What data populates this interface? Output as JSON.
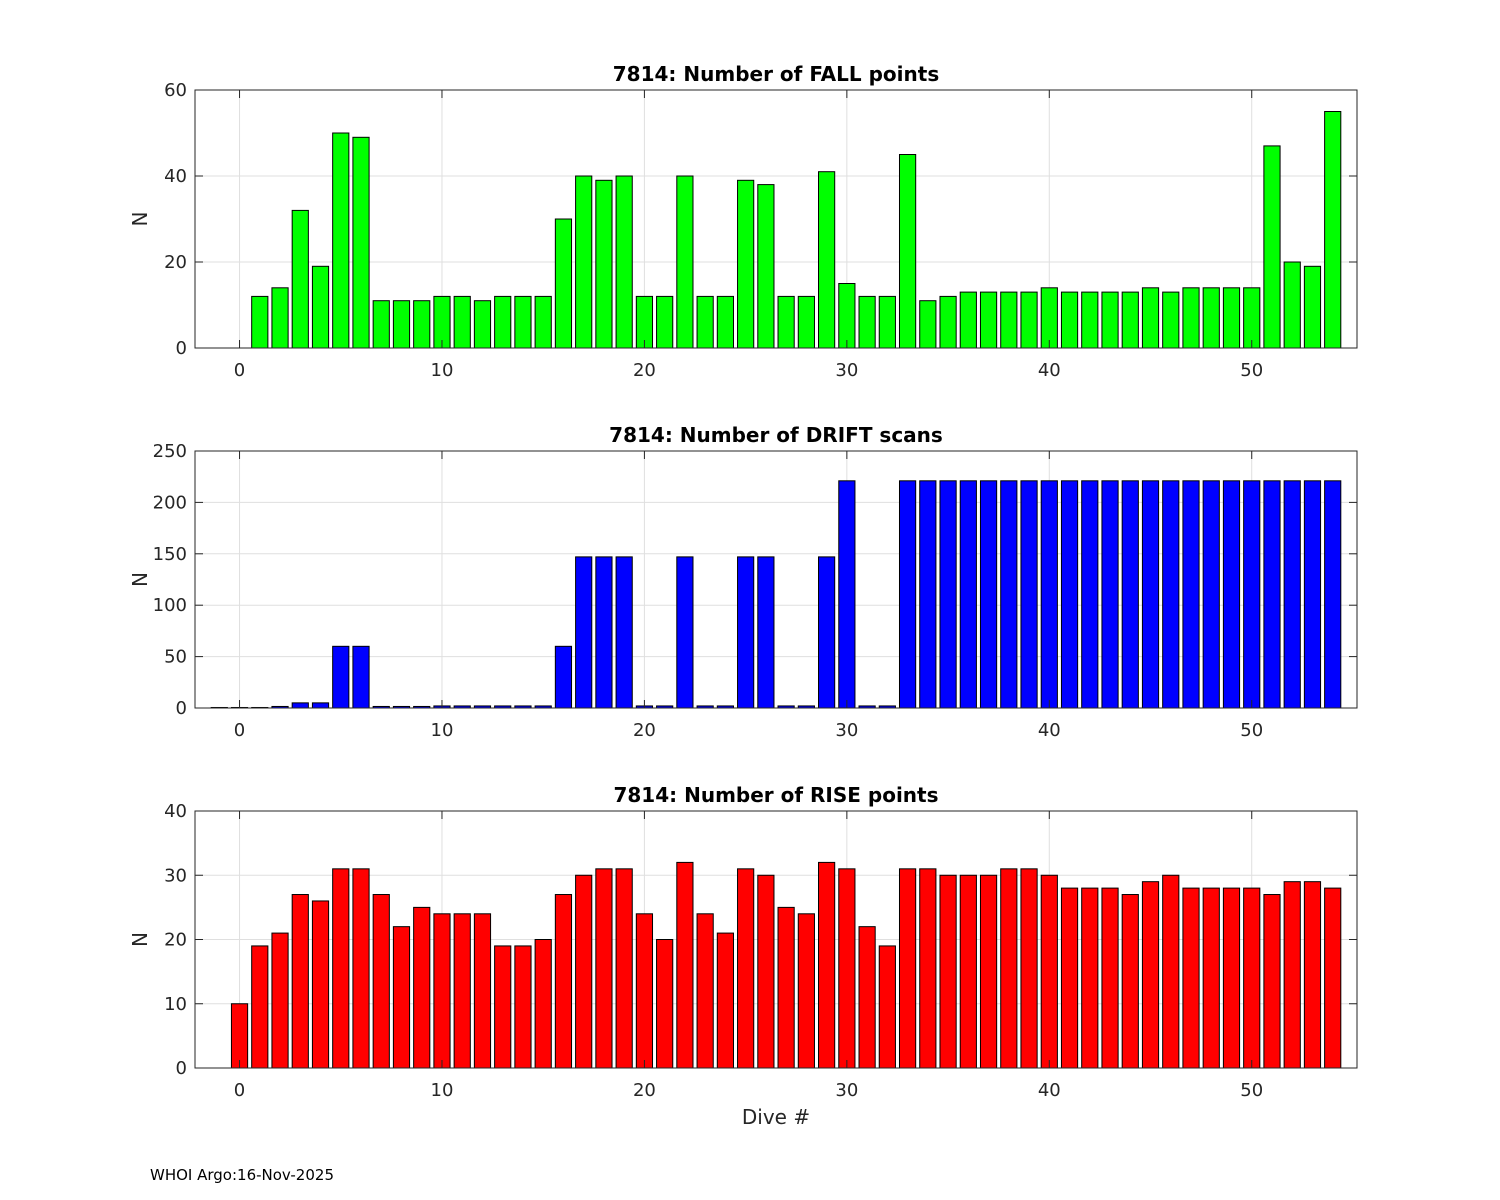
{
  "chart_data": [
    {
      "type": "bar",
      "title": "7814: Number of FALL points",
      "xlabel": "",
      "ylabel": "N",
      "xlim": [
        -2.2,
        55.2
      ],
      "ylim": [
        0,
        60
      ],
      "xticks": [
        0,
        10,
        20,
        30,
        40,
        50
      ],
      "yticks": [
        0,
        20,
        40,
        60
      ],
      "grid": true,
      "color": "#00ff00",
      "x": [
        1,
        2,
        3,
        4,
        5,
        6,
        7,
        8,
        9,
        10,
        11,
        12,
        13,
        14,
        15,
        16,
        17,
        18,
        19,
        20,
        21,
        22,
        23,
        24,
        25,
        26,
        27,
        28,
        29,
        30,
        31,
        32,
        33,
        34,
        35,
        36,
        37,
        38,
        39,
        40,
        41,
        42,
        43,
        44,
        45,
        46,
        47,
        48,
        49,
        50,
        51,
        52,
        53,
        54
      ],
      "values": [
        12,
        14,
        32,
        19,
        50,
        49,
        11,
        11,
        11,
        12,
        12,
        11,
        12,
        12,
        12,
        30,
        40,
        39,
        40,
        12,
        12,
        40,
        12,
        12,
        39,
        38,
        12,
        12,
        41,
        15,
        12,
        12,
        45,
        11,
        12,
        13,
        13,
        13,
        13,
        14,
        13,
        13,
        13,
        13,
        14,
        13,
        14,
        14,
        14,
        14,
        47,
        20,
        19,
        55
      ]
    },
    {
      "type": "bar",
      "title": "7814: Number of DRIFT scans",
      "xlabel": "",
      "ylabel": "N",
      "xlim": [
        -2.2,
        55.2
      ],
      "ylim": [
        0,
        250
      ],
      "xticks": [
        0,
        10,
        20,
        30,
        40,
        50
      ],
      "yticks": [
        0,
        50,
        100,
        150,
        200,
        250
      ],
      "grid": true,
      "color": "#0000ff",
      "x": [
        -1,
        0,
        1,
        2,
        3,
        4,
        5,
        6,
        7,
        8,
        9,
        10,
        11,
        12,
        13,
        14,
        15,
        16,
        17,
        18,
        19,
        20,
        21,
        22,
        23,
        24,
        25,
        26,
        27,
        28,
        29,
        30,
        31,
        32,
        33,
        34,
        35,
        36,
        37,
        38,
        39,
        40,
        41,
        42,
        43,
        44,
        45,
        46,
        47,
        48,
        49,
        50,
        51,
        52,
        53,
        54
      ],
      "values": [
        0.5,
        0.5,
        0.5,
        1.5,
        5,
        5,
        60,
        60,
        1.5,
        1.5,
        1.5,
        2,
        2,
        2,
        2,
        2,
        2,
        60,
        147,
        147,
        147,
        2,
        2,
        147,
        2,
        2,
        147,
        147,
        2,
        2,
        147,
        221,
        2,
        2,
        221,
        221,
        221,
        221,
        221,
        221,
        221,
        221,
        221,
        221,
        221,
        221,
        221,
        221,
        221,
        221,
        221,
        221,
        221,
        221,
        221,
        221
      ]
    },
    {
      "type": "bar",
      "title": "7814: Number of RISE points",
      "xlabel": "Dive #",
      "ylabel": "N",
      "xlim": [
        -2.2,
        55.2
      ],
      "ylim": [
        0,
        40
      ],
      "xticks": [
        0,
        10,
        20,
        30,
        40,
        50
      ],
      "yticks": [
        0,
        10,
        20,
        30,
        40
      ],
      "grid": true,
      "color": "#ff0000",
      "x": [
        0,
        1,
        2,
        3,
        4,
        5,
        6,
        7,
        8,
        9,
        10,
        11,
        12,
        13,
        14,
        15,
        16,
        17,
        18,
        19,
        20,
        21,
        22,
        23,
        24,
        25,
        26,
        27,
        28,
        29,
        30,
        31,
        32,
        33,
        34,
        35,
        36,
        37,
        38,
        39,
        40,
        41,
        42,
        43,
        44,
        45,
        46,
        47,
        48,
        49,
        50,
        51,
        52,
        53,
        54
      ],
      "values": [
        10,
        19,
        21,
        27,
        26,
        31,
        31,
        27,
        22,
        25,
        24,
        24,
        24,
        19,
        19,
        20,
        27,
        30,
        31,
        31,
        24,
        20,
        32,
        24,
        21,
        31,
        30,
        25,
        24,
        32,
        31,
        22,
        19,
        31,
        31,
        30,
        30,
        30,
        31,
        31,
        30,
        28,
        28,
        28,
        27,
        29,
        30,
        28,
        28,
        28,
        28,
        27,
        29,
        29,
        28
      ]
    }
  ],
  "footer": "WHOI Argo:16-Nov-2025"
}
